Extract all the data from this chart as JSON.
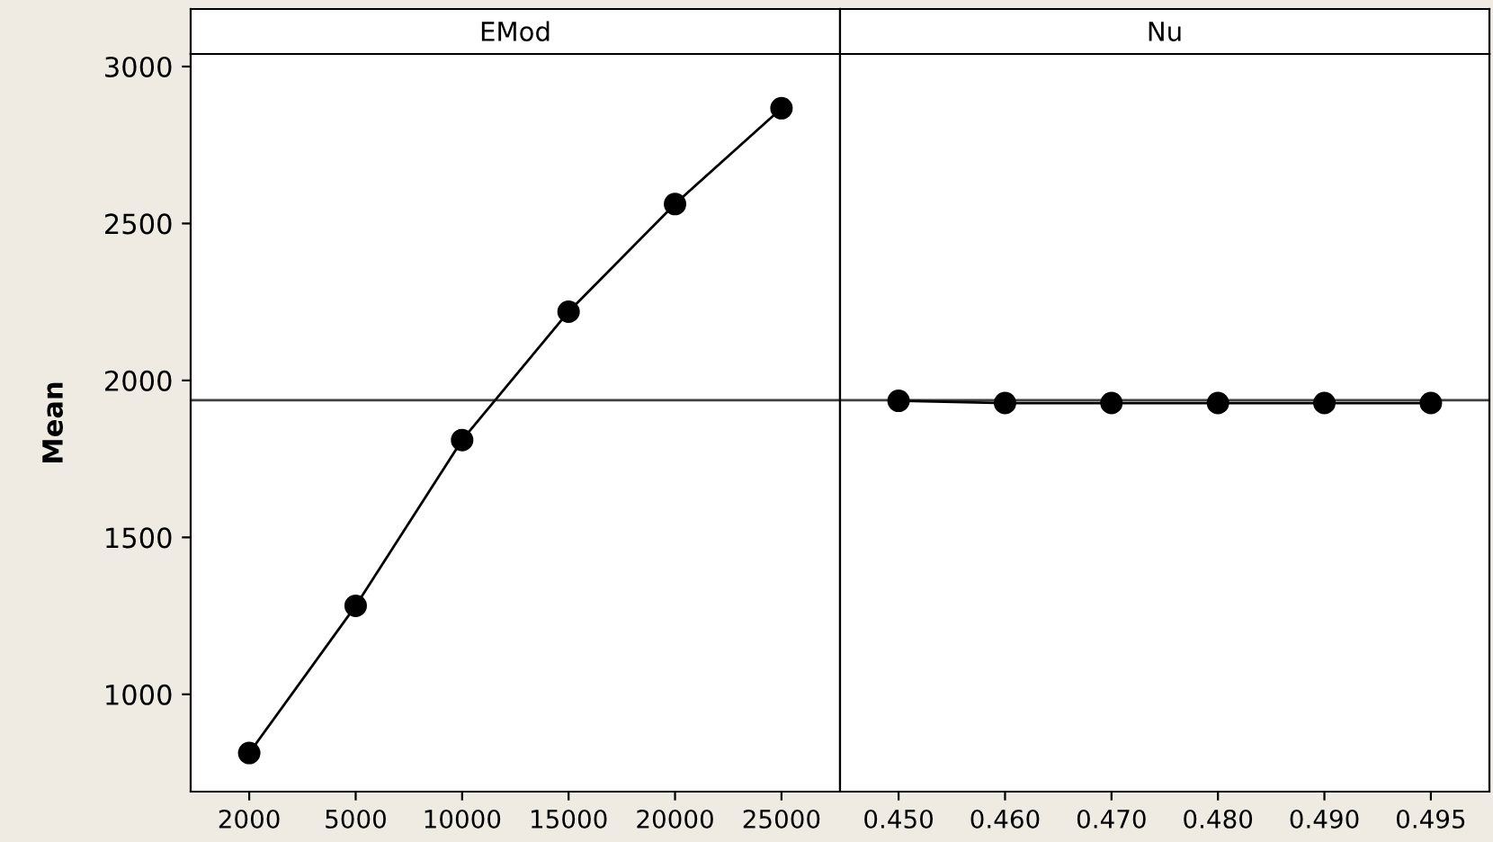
{
  "chart_data": [
    {
      "type": "line",
      "title": "EMod",
      "ylabel": "Mean",
      "categories": [
        "2000",
        "5000",
        "10000",
        "15000",
        "20000",
        "25000"
      ],
      "series": [
        {
          "color": "#000000",
          "values": [
            813,
            1282,
            1810,
            2219,
            2562,
            2867
          ]
        }
      ],
      "ylim": [
        690,
        3040
      ],
      "yticks": [
        1000,
        1500,
        2000,
        2500,
        3000
      ],
      "marker": "circle",
      "line_style": "solid",
      "grid": false,
      "ref_lines": [
        {
          "axis": "y",
          "value": 1937,
          "color": "#404040"
        }
      ]
    },
    {
      "type": "line",
      "title": "Nu",
      "categories": [
        "0.450",
        "0.460",
        "0.470",
        "0.480",
        "0.490",
        "0.495"
      ],
      "series": [
        {
          "color": "#000000",
          "values": [
            1935,
            1928,
            1928,
            1928,
            1928,
            1928
          ]
        }
      ],
      "ylim": [
        690,
        3040
      ],
      "yticks": [
        1000,
        1500,
        2000,
        2500,
        3000
      ],
      "tick_labels": "x",
      "marker": "circle",
      "line_style": "solid",
      "grid": false,
      "ref_lines": [
        {
          "axis": "y",
          "value": 1937,
          "color": "#404040"
        }
      ]
    }
  ]
}
